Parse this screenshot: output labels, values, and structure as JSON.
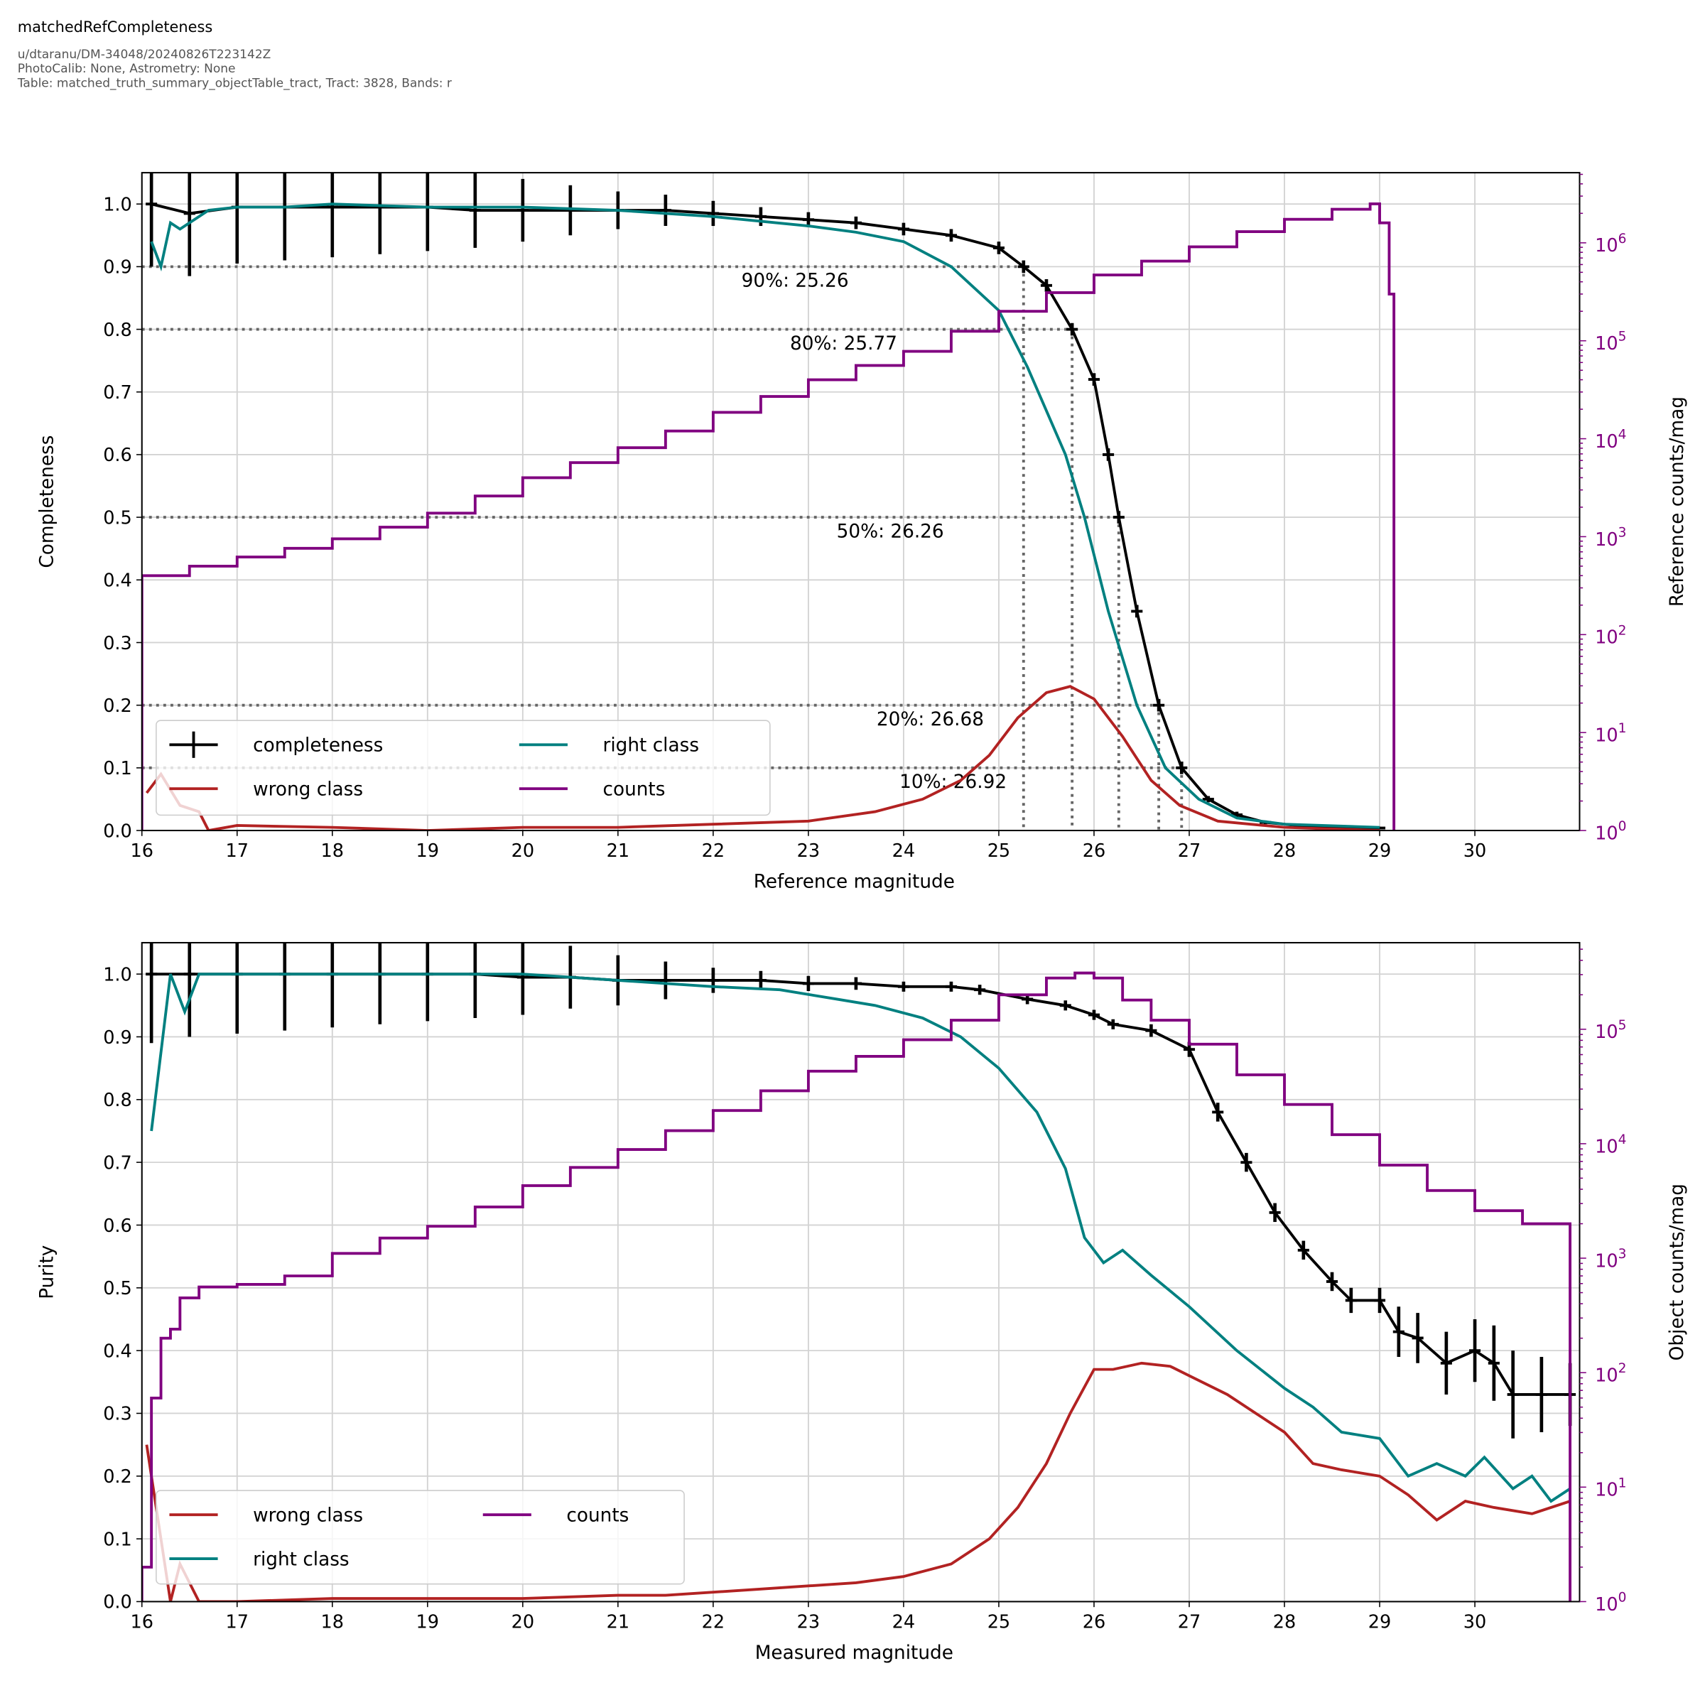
{
  "header": {
    "title": "matchedRefCompleteness",
    "subtitle_lines": [
      "u/dtaranu/DM-34048/20240826T223142Z",
      "PhotoCalib: None, Astrometry: None",
      "Table: matched_truth_summary_objectTable_tract, Tract: 3828, Bands: r"
    ]
  },
  "colors": {
    "completeness": "#000000",
    "wrong": "#b22222",
    "right": "#008080",
    "counts": "#800080",
    "grid": "#d3d3d3",
    "threshold": "#666666"
  },
  "chart_data": [
    {
      "type": "line",
      "xlabel": "Reference magnitude",
      "ylabel": "Completeness",
      "y2label": "Reference counts/mag",
      "xlim": [
        16,
        31.1
      ],
      "ylim": [
        0,
        1.05
      ],
      "y2lim": [
        1,
        5200000
      ],
      "y2scale": "log",
      "grid": true,
      "legend_placement": "lower-left",
      "xticks": [
        "16",
        "17",
        "18",
        "19",
        "20",
        "21",
        "22",
        "23",
        "24",
        "25",
        "26",
        "27",
        "28",
        "29",
        "30"
      ],
      "yticks": [
        "0.0",
        "0.1",
        "0.2",
        "0.3",
        "0.4",
        "0.5",
        "0.6",
        "0.7",
        "0.8",
        "0.9",
        "1.0"
      ],
      "y2ticks": [
        {
          "base": "10",
          "exp": "0"
        },
        {
          "base": "10",
          "exp": "1"
        },
        {
          "base": "10",
          "exp": "2"
        },
        {
          "base": "10",
          "exp": "3"
        },
        {
          "base": "10",
          "exp": "4"
        },
        {
          "base": "10",
          "exp": "5"
        },
        {
          "base": "10",
          "exp": "6"
        }
      ],
      "thresholds": [
        {
          "level": 0.9,
          "mag": 25.26,
          "label": "90%: 25.26"
        },
        {
          "level": 0.8,
          "mag": 25.77,
          "label": "80%: 25.77"
        },
        {
          "level": 0.5,
          "mag": 26.26,
          "label": "50%: 26.26"
        },
        {
          "level": 0.2,
          "mag": 26.68,
          "label": "20%: 26.68"
        },
        {
          "level": 0.1,
          "mag": 26.92,
          "label": "10%: 26.92"
        }
      ],
      "legend": [
        {
          "key": "completeness",
          "label": "completeness"
        },
        {
          "key": "right",
          "label": "right class"
        },
        {
          "key": "wrong",
          "label": "wrong class"
        },
        {
          "key": "counts",
          "label": "counts"
        }
      ],
      "series": [
        {
          "key": "completeness",
          "name": "completeness",
          "kind": "errorbar",
          "x": [
            16.1,
            16.5,
            17,
            17.5,
            18,
            18.5,
            19,
            19.5,
            20,
            20.5,
            21,
            21.5,
            22,
            22.5,
            23,
            23.5,
            24,
            24.5,
            25,
            25.26,
            25.5,
            25.77,
            26,
            26.15,
            26.26,
            26.45,
            26.68,
            26.92,
            27.2,
            27.5,
            27.8,
            28.2,
            28.6,
            29.0
          ],
          "y": [
            1.0,
            0.985,
            0.995,
            0.995,
            0.995,
            0.995,
            0.995,
            0.99,
            0.99,
            0.99,
            0.99,
            0.99,
            0.985,
            0.98,
            0.975,
            0.97,
            0.96,
            0.95,
            0.93,
            0.9,
            0.87,
            0.8,
            0.72,
            0.6,
            0.5,
            0.35,
            0.2,
            0.1,
            0.05,
            0.025,
            0.013,
            0.007,
            0.005,
            0.004
          ],
          "yerr": [
            0.1,
            0.1,
            0.09,
            0.085,
            0.08,
            0.075,
            0.07,
            0.06,
            0.05,
            0.04,
            0.03,
            0.025,
            0.02,
            0.015,
            0.012,
            0.01,
            0.01,
            0.01,
            0.01,
            0.01,
            0.01,
            0.01,
            0.01,
            0.01,
            0.01,
            0.01,
            0.01,
            0.01,
            0.005,
            0.005,
            0.003,
            0.002,
            0.002,
            0.002
          ]
        },
        {
          "key": "right",
          "name": "right class",
          "kind": "line",
          "x": [
            16.1,
            16.2,
            16.3,
            16.4,
            16.5,
            16.7,
            17,
            17.5,
            18,
            19,
            20,
            21,
            21.5,
            22,
            23,
            23.5,
            24,
            24.5,
            25,
            25.3,
            25.7,
            25.9,
            26.15,
            26.45,
            26.75,
            27.1,
            27.5,
            28,
            29
          ],
          "y": [
            0.94,
            0.9,
            0.97,
            0.96,
            0.97,
            0.99,
            0.995,
            0.995,
            1.0,
            0.995,
            0.995,
            0.99,
            0.985,
            0.98,
            0.965,
            0.955,
            0.94,
            0.9,
            0.83,
            0.74,
            0.6,
            0.5,
            0.35,
            0.2,
            0.1,
            0.05,
            0.02,
            0.01,
            0.005
          ]
        },
        {
          "key": "wrong",
          "name": "wrong class",
          "kind": "line",
          "x": [
            16.05,
            16.2,
            16.4,
            16.6,
            16.7,
            17,
            18,
            19,
            20,
            21,
            22,
            23,
            23.7,
            24.2,
            24.6,
            24.9,
            25.2,
            25.5,
            25.75,
            26.0,
            26.3,
            26.6,
            26.9,
            27.3,
            28,
            29
          ],
          "y": [
            0.06,
            0.09,
            0.04,
            0.03,
            0.0,
            0.008,
            0.005,
            0.0,
            0.005,
            0.005,
            0.01,
            0.015,
            0.03,
            0.05,
            0.08,
            0.12,
            0.18,
            0.22,
            0.23,
            0.21,
            0.15,
            0.08,
            0.04,
            0.015,
            0.005,
            0.0
          ]
        },
        {
          "key": "counts",
          "name": "counts",
          "kind": "step",
          "axis": "y2",
          "x": [
            16.0,
            16.5,
            17,
            17.5,
            18,
            18.5,
            19,
            19.5,
            20,
            20.5,
            21,
            21.5,
            22,
            22.5,
            23,
            23.5,
            24,
            24.5,
            25,
            25.5,
            26,
            26.5,
            27,
            27.5,
            28,
            28.5,
            28.9,
            29.0,
            29.1,
            29.15
          ],
          "y": [
            400,
            500,
            620,
            760,
            950,
            1250,
            1740,
            2600,
            4000,
            5700,
            8100,
            12000,
            18600,
            27000,
            40000,
            56000,
            78000,
            125000,
            200000,
            310000,
            470000,
            650000,
            910000,
            1300000,
            1740000,
            2200000,
            2500000,
            1600000,
            300000,
            1
          ]
        }
      ]
    },
    {
      "type": "line",
      "xlabel": "Measured magnitude",
      "ylabel": "Purity",
      "y2label": "Object counts/mag",
      "xlim": [
        16,
        31.1
      ],
      "ylim": [
        0,
        1.05
      ],
      "y2lim": [
        1,
        570000
      ],
      "y2scale": "log",
      "grid": true,
      "legend_placement": "lower-left",
      "xticks": [
        "16",
        "17",
        "18",
        "19",
        "20",
        "21",
        "22",
        "23",
        "24",
        "25",
        "26",
        "27",
        "28",
        "29",
        "30"
      ],
      "yticks": [
        "0.0",
        "0.1",
        "0.2",
        "0.3",
        "0.4",
        "0.5",
        "0.6",
        "0.7",
        "0.8",
        "0.9",
        "1.0"
      ],
      "y2ticks": [
        {
          "base": "10",
          "exp": "0"
        },
        {
          "base": "10",
          "exp": "1"
        },
        {
          "base": "10",
          "exp": "2"
        },
        {
          "base": "10",
          "exp": "3"
        },
        {
          "base": "10",
          "exp": "4"
        },
        {
          "base": "10",
          "exp": "5"
        }
      ],
      "legend": [
        {
          "key": "wrong",
          "label": "wrong class"
        },
        {
          "key": "counts",
          "label": "counts"
        },
        {
          "key": "right",
          "label": "right class"
        }
      ],
      "series": [
        {
          "key": "completeness",
          "kind": "errorbar",
          "x": [
            16.1,
            16.5,
            17,
            17.5,
            18,
            18.5,
            19,
            19.5,
            20,
            20.5,
            21,
            21.5,
            22,
            22.5,
            23,
            23.5,
            24,
            24.5,
            24.8,
            25.3,
            25.7,
            26.0,
            26.2,
            26.6,
            27.0,
            27.3,
            27.6,
            27.9,
            28.2,
            28.5,
            28.7,
            29.0,
            29.2,
            29.4,
            29.7,
            30.0,
            30.2,
            30.4,
            30.7,
            31.0
          ],
          "y": [
            1.0,
            1.0,
            1.0,
            1.0,
            1.0,
            1.0,
            1.0,
            1.0,
            0.995,
            0.995,
            0.99,
            0.99,
            0.99,
            0.99,
            0.985,
            0.985,
            0.98,
            0.98,
            0.975,
            0.96,
            0.95,
            0.935,
            0.92,
            0.91,
            0.88,
            0.78,
            0.7,
            0.62,
            0.56,
            0.51,
            0.48,
            0.48,
            0.43,
            0.42,
            0.38,
            0.4,
            0.38,
            0.33,
            0.33,
            0.33
          ],
          "yerr": [
            0.11,
            0.1,
            0.095,
            0.09,
            0.085,
            0.08,
            0.075,
            0.07,
            0.06,
            0.05,
            0.04,
            0.03,
            0.02,
            0.015,
            0.012,
            0.01,
            0.008,
            0.008,
            0.008,
            0.008,
            0.008,
            0.008,
            0.008,
            0.01,
            0.012,
            0.015,
            0.015,
            0.015,
            0.015,
            0.015,
            0.02,
            0.02,
            0.04,
            0.04,
            0.05,
            0.05,
            0.06,
            0.07,
            0.06,
            0.05
          ]
        },
        {
          "key": "right",
          "name": "right class",
          "kind": "line",
          "x": [
            16.1,
            16.3,
            16.45,
            16.6,
            17,
            18,
            19,
            20,
            20.5,
            21,
            22,
            22.7,
            23.3,
            23.7,
            24.2,
            24.6,
            25,
            25.4,
            25.7,
            25.9,
            26.1,
            26.3,
            26.6,
            27,
            27.5,
            28,
            28.3,
            28.6,
            29,
            29.3,
            29.6,
            29.9,
            30.1,
            30.4,
            30.6,
            30.8,
            31.0
          ],
          "y": [
            0.75,
            1.0,
            0.94,
            1.0,
            1.0,
            1.0,
            1.0,
            1.0,
            0.995,
            0.99,
            0.98,
            0.975,
            0.96,
            0.95,
            0.93,
            0.9,
            0.85,
            0.78,
            0.69,
            0.58,
            0.54,
            0.56,
            0.52,
            0.47,
            0.4,
            0.34,
            0.31,
            0.27,
            0.26,
            0.2,
            0.22,
            0.2,
            0.23,
            0.18,
            0.2,
            0.16,
            0.18
          ]
        },
        {
          "key": "wrong",
          "name": "wrong class",
          "kind": "line",
          "x": [
            16.05,
            16.2,
            16.3,
            16.4,
            16.6,
            17,
            18,
            19,
            20,
            21,
            21.5,
            22.5,
            23,
            23.5,
            24,
            24.5,
            24.9,
            25.2,
            25.5,
            25.75,
            26.0,
            26.2,
            26.5,
            26.8,
            27.0,
            27.4,
            27.7,
            28.0,
            28.3,
            28.6,
            29.0,
            29.3,
            29.6,
            29.9,
            30.2,
            30.6,
            31.0
          ],
          "y": [
            0.25,
            0.1,
            0.0,
            0.06,
            0.0,
            0.0,
            0.005,
            0.005,
            0.005,
            0.01,
            0.01,
            0.02,
            0.025,
            0.03,
            0.04,
            0.06,
            0.1,
            0.15,
            0.22,
            0.3,
            0.37,
            0.37,
            0.38,
            0.375,
            0.36,
            0.33,
            0.3,
            0.27,
            0.22,
            0.21,
            0.2,
            0.17,
            0.13,
            0.16,
            0.15,
            0.14,
            0.16
          ]
        },
        {
          "key": "counts",
          "name": "counts",
          "kind": "step",
          "axis": "y2",
          "x": [
            16.0,
            16.1,
            16.2,
            16.3,
            16.4,
            16.6,
            17,
            17.5,
            18,
            18.5,
            19,
            19.5,
            20,
            20.5,
            21,
            21.5,
            22,
            22.5,
            23,
            23.5,
            24,
            24.5,
            25,
            25.5,
            25.8,
            26.0,
            26.3,
            26.6,
            27,
            27.5,
            28,
            28.5,
            29,
            29.5,
            30,
            30.5,
            31.0
          ],
          "y": [
            2,
            60,
            200,
            240,
            450,
            560,
            590,
            700,
            1100,
            1500,
            1900,
            2800,
            4300,
            6200,
            8900,
            13000,
            19500,
            29000,
            43000,
            58000,
            81000,
            120000,
            200000,
            280000,
            310000,
            280000,
            180000,
            120000,
            74000,
            40000,
            22000,
            12000,
            6500,
            3900,
            2600,
            2000,
            1500
          ]
        }
      ]
    }
  ]
}
